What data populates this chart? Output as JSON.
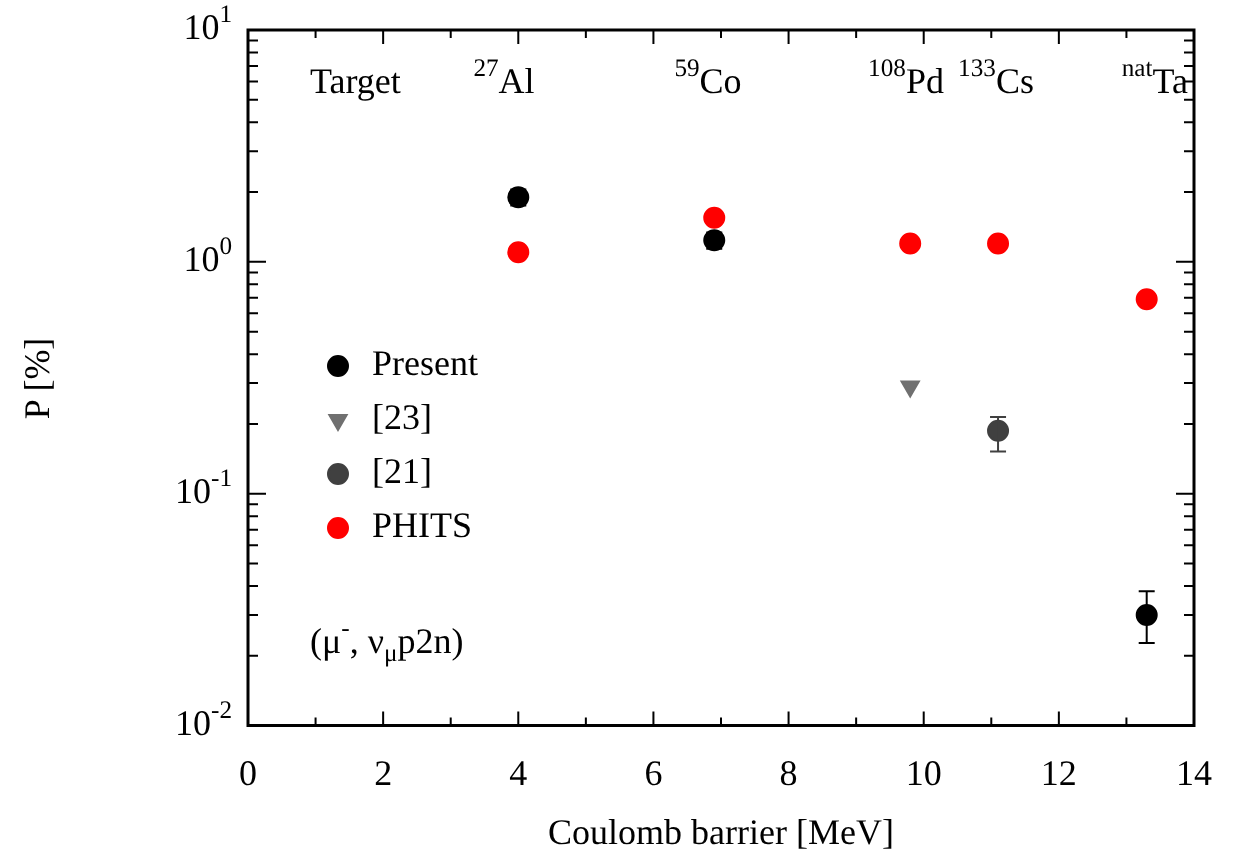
{
  "chart_data": {
    "type": "scatter",
    "xlabel": "Coulomb barrier [MeV]",
    "ylabel": "P [%]",
    "log": "y",
    "xlim": [
      0,
      14
    ],
    "xticks": [
      0,
      {
        "value": 1,
        "label": null
      },
      2,
      {
        "value": 3,
        "label": null
      },
      4,
      {
        "value": 5,
        "label": null
      },
      6,
      {
        "value": 7,
        "label": null
      },
      8,
      {
        "value": 9,
        "label": null
      },
      10,
      {
        "value": 11,
        "label": null
      },
      12,
      {
        "value": 13,
        "label": null
      },
      14
    ],
    "ylim": [
      0.01,
      10
    ],
    "yticks": [
      {
        "value": 0.01,
        "label": "10$^{-2}$"
      },
      {
        "value": 0.02,
        "label": null
      },
      {
        "value": 0.03,
        "label": null
      },
      {
        "value": 0.04,
        "label": null
      },
      {
        "value": 0.05,
        "label": null
      },
      {
        "value": 0.06,
        "label": null
      },
      {
        "value": 0.07,
        "label": null
      },
      {
        "value": 0.08,
        "label": null
      },
      {
        "value": 0.09,
        "label": null
      },
      {
        "value": 0.1,
        "label": "10$^{-1}$"
      },
      {
        "value": 0.2,
        "label": null
      },
      {
        "value": 0.3,
        "label": null
      },
      {
        "value": 0.4,
        "label": null
      },
      {
        "value": 0.5,
        "label": null
      },
      {
        "value": 0.6,
        "label": null
      },
      {
        "value": 0.7,
        "label": null
      },
      {
        "value": 0.8,
        "label": null
      },
      {
        "value": 0.9,
        "label": null
      },
      {
        "value": 1,
        "label": "10$^{0}$"
      },
      {
        "value": 2,
        "label": null
      },
      {
        "value": 3,
        "label": null
      },
      {
        "value": 4,
        "label": null
      },
      {
        "value": 5,
        "label": null
      },
      {
        "value": 6,
        "label": null
      },
      {
        "value": 7,
        "label": null
      },
      {
        "value": 8,
        "label": null
      },
      {
        "value": 9,
        "label": null
      },
      {
        "value": 10,
        "label": "10$^{1}$"
      }
    ],
    "legend": "left",
    "series": [
      {
        "name": "Present",
        "color": "#000000",
        "marker": "circle",
        "x": [
          4.0,
          6.9,
          13.3
        ],
        "values": [
          1.9,
          1.24,
          0.03
        ],
        "errors": [
          [
            1.75,
            2.05
          ],
          [
            1.14,
            1.34
          ],
          [
            0.0227,
            0.038
          ]
        ]
      },
      {
        "name": "[23]",
        "color": "#707070",
        "marker": "triangle-down",
        "x": [
          9.8
        ],
        "values": [
          0.29
        ]
      },
      {
        "name": "[21]",
        "color": "#404040",
        "marker": "circle",
        "x": [
          11.1
        ],
        "values": [
          0.187
        ],
        "errors": [
          [
            0.152,
            0.214
          ]
        ]
      },
      {
        "name": "PHITS",
        "color": "#ff0000",
        "marker": "circle",
        "x": [
          4.0,
          6.9,
          9.8,
          11.1,
          13.3
        ],
        "values": [
          1.1,
          1.55,
          1.2,
          1.2,
          0.69
        ]
      }
    ],
    "annotations": [
      "Target",
      "$^{27}$Al",
      "$^{59}$Co",
      "$^{108}$Pd",
      "$^{133}$Cs",
      "$^{nat}$Ta",
      "(μ$^{-}$, ν$_{μ}$p2n)"
    ]
  }
}
